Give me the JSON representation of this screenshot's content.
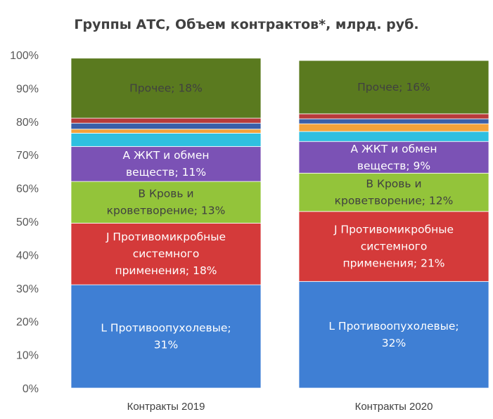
{
  "chart_data": {
    "type": "bar",
    "stacked": true,
    "title": "Группы АТС, Объем контрактов*, млрд. руб.",
    "xlabel": "",
    "ylabel": "",
    "ylim": [
      0,
      100
    ],
    "yticks": [
      "0%",
      "10%",
      "20%",
      "30%",
      "40%",
      "50%",
      "60%",
      "70%",
      "80%",
      "90%",
      "100%"
    ],
    "grid": false,
    "legend": "none",
    "categories": [
      "Контракты 2019",
      "Контракты 2020"
    ],
    "series": [
      {
        "color": "#3f7fd4",
        "values": [
          31,
          32
        ],
        "labels": [
          [
            "L Противоопухолевые;",
            "31%"
          ],
          [
            "L Противоопухолевые;",
            "32%"
          ]
        ],
        "label_color": "#ffffff"
      },
      {
        "color": "#d43a3a",
        "values": [
          18.5,
          21
        ],
        "labels": [
          [
            "J Противомикробные",
            "системного",
            "применения; 18%"
          ],
          [
            "J Противомикробные",
            "системного",
            "применения; 21%"
          ]
        ],
        "label_color": "#ffffff"
      },
      {
        "color": "#93c43a",
        "values": [
          12.5,
          11.5
        ],
        "labels": [
          [
            "B Кровь и",
            "кроветворение; 13%"
          ],
          [
            "B Кровь и",
            "кроветворение; 12%"
          ]
        ],
        "label_color": "#404040"
      },
      {
        "color": "#7b52b5",
        "values": [
          10.5,
          9.5
        ],
        "labels": [
          [
            "A ЖКТ и обмен",
            "веществ; 11%"
          ],
          [
            "A ЖКТ и обмен",
            "веществ; 9%"
          ]
        ],
        "label_color": "#ffffff"
      },
      {
        "color": "#2fbfe0",
        "values": [
          4,
          3
        ],
        "labels": [
          [],
          []
        ],
        "label_color": "#ffffff"
      },
      {
        "color": "#f3a23a",
        "values": [
          1.2,
          2.3
        ],
        "labels": [
          [],
          []
        ],
        "label_color": "#ffffff"
      },
      {
        "color": "#3a5fa8",
        "values": [
          1.8,
          1.5
        ],
        "labels": [
          [],
          []
        ],
        "label_color": "#ffffff"
      },
      {
        "color": "#b83a3a",
        "values": [
          1.5,
          1.5
        ],
        "labels": [
          [],
          []
        ],
        "label_color": "#ffffff"
      },
      {
        "color": "#5a7a1f",
        "values": [
          18,
          16
        ],
        "labels": [
          [
            "Прочее; 18%"
          ],
          [
            "Прочее; 16%"
          ]
        ],
        "label_color": "#404040"
      }
    ]
  }
}
